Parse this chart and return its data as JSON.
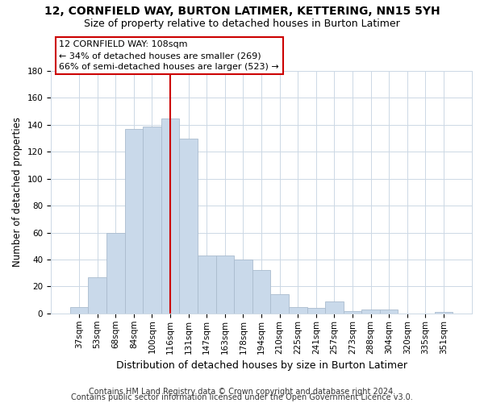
{
  "title": "12, CORNFIELD WAY, BURTON LATIMER, KETTERING, NN15 5YH",
  "subtitle": "Size of property relative to detached houses in Burton Latimer",
  "xlabel": "Distribution of detached houses by size in Burton Latimer",
  "ylabel": "Number of detached properties",
  "categories": [
    "37sqm",
    "53sqm",
    "68sqm",
    "84sqm",
    "100sqm",
    "116sqm",
    "131sqm",
    "147sqm",
    "163sqm",
    "178sqm",
    "194sqm",
    "210sqm",
    "225sqm",
    "241sqm",
    "257sqm",
    "273sqm",
    "288sqm",
    "304sqm",
    "320sqm",
    "335sqm",
    "351sqm"
  ],
  "values": [
    5,
    27,
    60,
    137,
    139,
    145,
    130,
    43,
    43,
    40,
    32,
    14,
    5,
    4,
    9,
    2,
    3,
    3,
    0,
    0,
    1
  ],
  "bar_color": "#c9d9ea",
  "bar_edge_color": "#aabcce",
  "ylim": [
    0,
    180
  ],
  "yticks": [
    0,
    20,
    40,
    60,
    80,
    100,
    120,
    140,
    160,
    180
  ],
  "vline_x": 5.0,
  "vline_color": "#cc0000",
  "annotation_title": "12 CORNFIELD WAY: 108sqm",
  "annotation_line1": "← 34% of detached houses are smaller (269)",
  "annotation_line2": "66% of semi-detached houses are larger (523) →",
  "footer_line1": "Contains HM Land Registry data © Crown copyright and database right 2024.",
  "footer_line2": "Contains public sector information licensed under the Open Government Licence v3.0.",
  "title_fontsize": 10,
  "subtitle_fontsize": 9,
  "xlabel_fontsize": 9,
  "ylabel_fontsize": 8.5,
  "tick_fontsize": 7.5,
  "annotation_fontsize": 8,
  "footer_fontsize": 7,
  "background_color": "#ffffff",
  "grid_color": "#ccd8e5"
}
